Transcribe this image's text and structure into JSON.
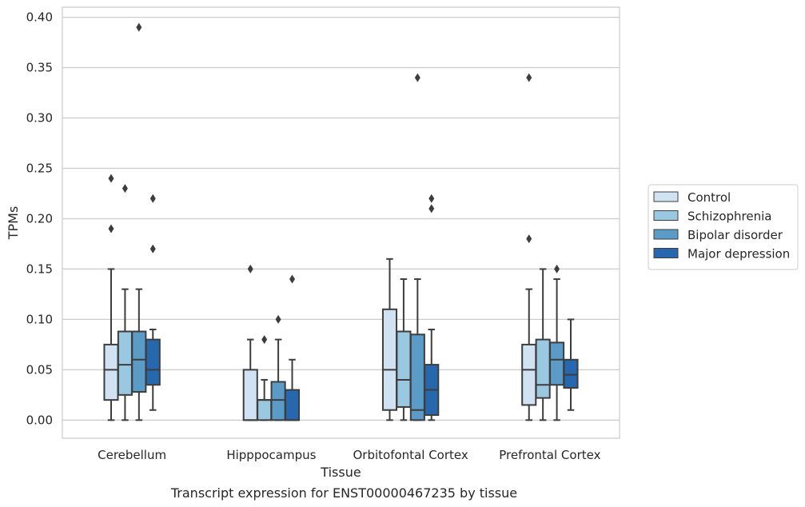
{
  "chart_data": {
    "type": "boxplot",
    "title": "Transcript expression for ENST00000467235 by tissue",
    "xlabel": "Tissue",
    "ylabel": "TPMs",
    "ylim": [
      -0.018,
      0.41
    ],
    "yticks": [
      "0.00",
      "0.05",
      "0.10",
      "0.15",
      "0.20",
      "0.25",
      "0.30",
      "0.35",
      "0.40"
    ],
    "ytick_values": [
      0,
      0.05,
      0.1,
      0.15,
      0.2,
      0.25,
      0.3,
      0.35,
      0.4
    ],
    "grid": "horizontal",
    "legend_position": "right",
    "categories": [
      "Cerebellum",
      "Hipppocampus",
      "Orbitofontal Cortex",
      "Prefrontal Cortex"
    ],
    "series": [
      {
        "name": "Control",
        "color": "#d1e2f2",
        "boxes": [
          {
            "whislo": 0.0,
            "q1": 0.02,
            "med": 0.05,
            "q3": 0.075,
            "whishi": 0.15,
            "fliers": [
              0.19,
              0.24
            ]
          },
          {
            "whislo": 0.0,
            "q1": 0.0,
            "med": 0.0,
            "q3": 0.05,
            "whishi": 0.08,
            "fliers": [
              0.15
            ]
          },
          {
            "whislo": 0.0,
            "q1": 0.01,
            "med": 0.05,
            "q3": 0.11,
            "whishi": 0.16,
            "fliers": []
          },
          {
            "whislo": 0.0,
            "q1": 0.015,
            "med": 0.05,
            "q3": 0.075,
            "whishi": 0.13,
            "fliers": [
              0.18,
              0.34
            ]
          }
        ]
      },
      {
        "name": "Schizophrenia",
        "color": "#9ac8e0",
        "boxes": [
          {
            "whislo": 0.0,
            "q1": 0.025,
            "med": 0.055,
            "q3": 0.088,
            "whishi": 0.13,
            "fliers": [
              0.23
            ]
          },
          {
            "whislo": 0.0,
            "q1": 0.0,
            "med": 0.02,
            "q3": 0.02,
            "whishi": 0.04,
            "fliers": [
              0.08
            ]
          },
          {
            "whislo": 0.0,
            "q1": 0.013,
            "med": 0.04,
            "q3": 0.088,
            "whishi": 0.14,
            "fliers": []
          },
          {
            "whislo": 0.0,
            "q1": 0.022,
            "med": 0.035,
            "q3": 0.08,
            "whishi": 0.15,
            "fliers": []
          }
        ]
      },
      {
        "name": "Bipolar disorder",
        "color": "#5a9bc8",
        "boxes": [
          {
            "whislo": 0.0,
            "q1": 0.028,
            "med": 0.06,
            "q3": 0.088,
            "whishi": 0.13,
            "fliers": [
              0.39
            ]
          },
          {
            "whislo": 0.0,
            "q1": 0.0,
            "med": 0.02,
            "q3": 0.038,
            "whishi": 0.08,
            "fliers": [
              0.1
            ]
          },
          {
            "whislo": 0.0,
            "q1": 0.0,
            "med": 0.01,
            "q3": 0.085,
            "whishi": 0.14,
            "fliers": [
              0.34
            ]
          },
          {
            "whislo": 0.0,
            "q1": 0.035,
            "med": 0.06,
            "q3": 0.077,
            "whishi": 0.14,
            "fliers": [
              0.15
            ]
          }
        ]
      },
      {
        "name": "Major depression",
        "color": "#2767ae",
        "boxes": [
          {
            "whislo": 0.01,
            "q1": 0.035,
            "med": 0.05,
            "q3": 0.08,
            "whishi": 0.09,
            "fliers": [
              0.17,
              0.22
            ]
          },
          {
            "whislo": 0.0,
            "q1": 0.0,
            "med": 0.0,
            "q3": 0.03,
            "whishi": 0.06,
            "fliers": [
              0.14
            ]
          },
          {
            "whislo": 0.0,
            "q1": 0.005,
            "med": 0.03,
            "q3": 0.055,
            "whishi": 0.09,
            "fliers": [
              0.21,
              0.22
            ]
          },
          {
            "whislo": 0.01,
            "q1": 0.032,
            "med": 0.045,
            "q3": 0.06,
            "whishi": 0.1,
            "fliers": []
          }
        ]
      }
    ]
  }
}
